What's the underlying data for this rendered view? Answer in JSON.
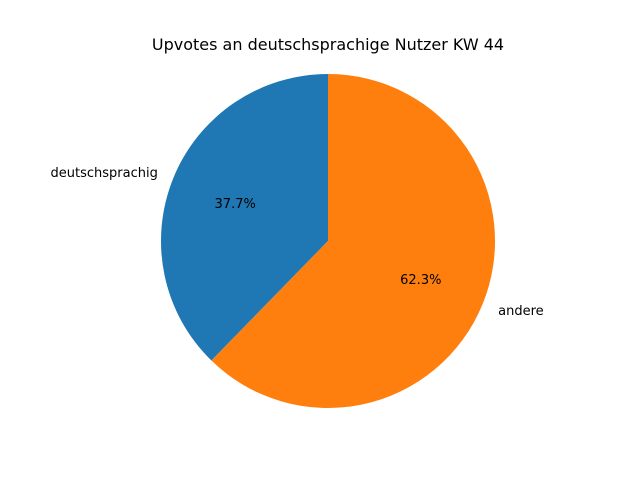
{
  "chart_data": {
    "type": "pie",
    "title": "Upvotes an deutschsprachige Nutzer KW 44",
    "slices": [
      {
        "label": "deutschsprachig",
        "value": 37.7,
        "pct_label": "37.7%",
        "color": "#1f77b4"
      },
      {
        "label": "andere",
        "value": 62.3,
        "pct_label": "62.3%",
        "color": "#ff7f0e"
      }
    ],
    "start_angle_deg": 90,
    "direction": "counterclockwise"
  }
}
